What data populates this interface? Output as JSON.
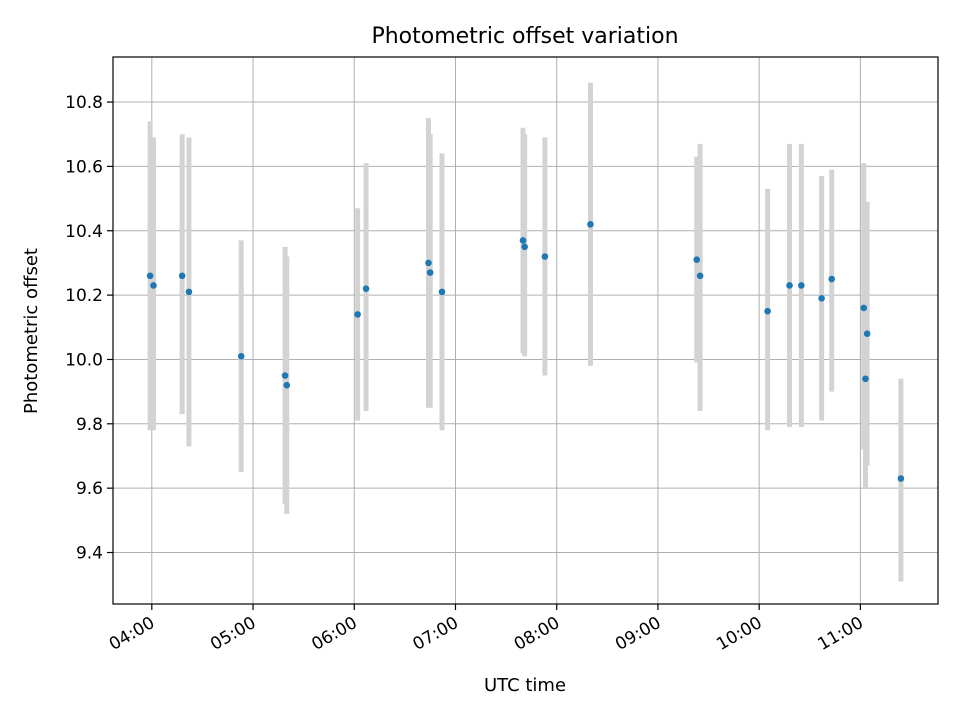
{
  "chart_data": {
    "type": "scatter",
    "title": "Photometric offset variation",
    "xlabel": "UTC time",
    "ylabel": "Photometric offset",
    "x_axis": {
      "unit": "UTC time (HH:MM)",
      "range": [
        "03:37",
        "11:46"
      ],
      "ticks": [
        "04:00",
        "05:00",
        "06:00",
        "07:00",
        "08:00",
        "09:00",
        "10:00",
        "11:00"
      ]
    },
    "y_axis": {
      "range": [
        9.24,
        10.94
      ],
      "ticks": [
        9.4,
        9.6,
        9.8,
        10.0,
        10.2,
        10.4,
        10.6,
        10.8
      ],
      "tick_labels": [
        "9.4",
        "9.6",
        "9.8",
        "10.0",
        "10.2",
        "10.4",
        "10.6",
        "10.8"
      ]
    },
    "grid": true,
    "colors": {
      "points": "#1f77b4",
      "errorbars": "#d3d3d3",
      "grid": "#b0b0b0"
    },
    "points": [
      {
        "x": "03:59",
        "y": 10.26,
        "lo": 9.78,
        "hi": 10.74
      },
      {
        "x": "04:01",
        "y": 10.23,
        "lo": 9.78,
        "hi": 10.69
      },
      {
        "x": "04:18",
        "y": 10.26,
        "lo": 9.83,
        "hi": 10.7
      },
      {
        "x": "04:22",
        "y": 10.21,
        "lo": 9.73,
        "hi": 10.69
      },
      {
        "x": "04:53",
        "y": 10.01,
        "lo": 9.65,
        "hi": 10.37
      },
      {
        "x": "05:19",
        "y": 9.95,
        "lo": 9.55,
        "hi": 10.35
      },
      {
        "x": "05:20",
        "y": 9.92,
        "lo": 9.52,
        "hi": 10.32
      },
      {
        "x": "06:02",
        "y": 10.14,
        "lo": 9.81,
        "hi": 10.47
      },
      {
        "x": "06:07",
        "y": 10.22,
        "lo": 9.84,
        "hi": 10.61
      },
      {
        "x": "06:44",
        "y": 10.3,
        "lo": 9.85,
        "hi": 10.75
      },
      {
        "x": "06:45",
        "y": 10.27,
        "lo": 9.85,
        "hi": 10.7
      },
      {
        "x": "06:52",
        "y": 10.21,
        "lo": 9.78,
        "hi": 10.64
      },
      {
        "x": "07:40",
        "y": 10.37,
        "lo": 10.02,
        "hi": 10.72
      },
      {
        "x": "07:41",
        "y": 10.35,
        "lo": 10.01,
        "hi": 10.7
      },
      {
        "x": "07:53",
        "y": 10.32,
        "lo": 9.95,
        "hi": 10.69
      },
      {
        "x": "08:20",
        "y": 10.42,
        "lo": 9.98,
        "hi": 10.86
      },
      {
        "x": "09:23",
        "y": 10.31,
        "lo": 9.99,
        "hi": 10.63
      },
      {
        "x": "09:25",
        "y": 10.26,
        "lo": 9.84,
        "hi": 10.67
      },
      {
        "x": "10:05",
        "y": 10.15,
        "lo": 9.78,
        "hi": 10.53
      },
      {
        "x": "10:18",
        "y": 10.23,
        "lo": 9.79,
        "hi": 10.67
      },
      {
        "x": "10:25",
        "y": 10.23,
        "lo": 9.79,
        "hi": 10.67
      },
      {
        "x": "10:37",
        "y": 10.19,
        "lo": 9.81,
        "hi": 10.57
      },
      {
        "x": "10:43",
        "y": 10.25,
        "lo": 9.9,
        "hi": 10.59
      },
      {
        "x": "11:02",
        "y": 10.16,
        "lo": 9.72,
        "hi": 10.61
      },
      {
        "x": "11:03",
        "y": 9.94,
        "lo": 9.6,
        "hi": 10.28
      },
      {
        "x": "11:04",
        "y": 10.08,
        "lo": 9.67,
        "hi": 10.49
      },
      {
        "x": "11:24",
        "y": 9.63,
        "lo": 9.31,
        "hi": 9.94
      }
    ]
  }
}
